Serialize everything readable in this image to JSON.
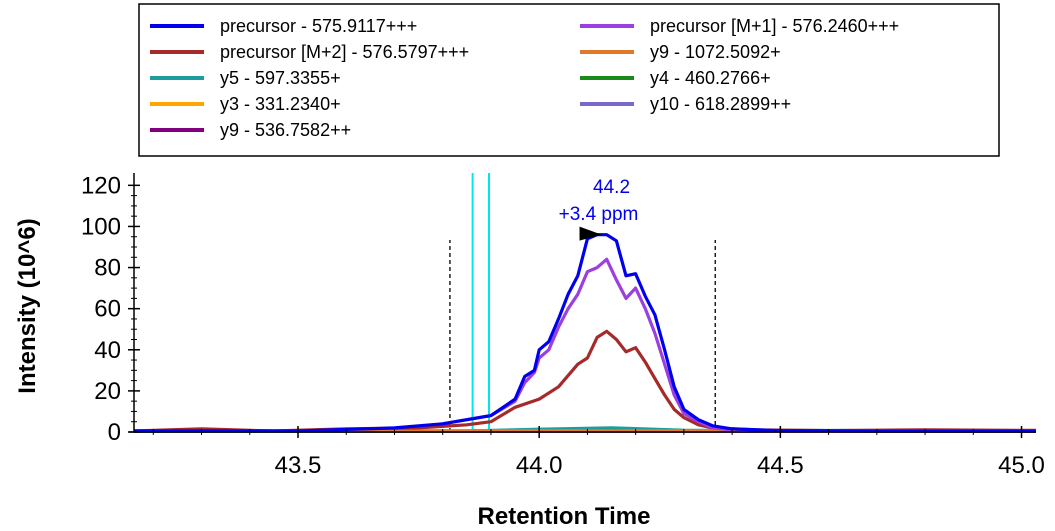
{
  "chart_data": {
    "type": "line",
    "xlabel": "Retention Time",
    "ylabel": "Intensity (10^6)",
    "xlim": [
      43.16,
      45.03
    ],
    "ylim": [
      0,
      126
    ],
    "xticks": [
      "43.5",
      "44.0",
      "44.5",
      "45.0"
    ],
    "xtick_values": [
      43.5,
      44.0,
      44.5,
      45.0
    ],
    "yticks": [
      "0",
      "20",
      "40",
      "60",
      "80",
      "100",
      "120"
    ],
    "ytick_values": [
      0,
      20,
      40,
      60,
      80,
      100,
      120
    ],
    "grid": false,
    "legend_placement": "top",
    "legend": [
      {
        "label": "precursor - 575.9117+++",
        "color": "#0000ee"
      },
      {
        "label": "precursor [M+1] - 576.2460+++",
        "color": "#9b3fe0"
      },
      {
        "label": "precursor [M+2] - 576.5797+++",
        "color": "#a52a2a"
      },
      {
        "label": "y9 - 1072.5092+",
        "color": "#e07a2a"
      },
      {
        "label": "y5 - 597.3355+",
        "color": "#1f9c9c"
      },
      {
        "label": "y4 - 460.2766+",
        "color": "#1a8a1a"
      },
      {
        "label": "y3 - 331.2340+",
        "color": "#ffa500"
      },
      {
        "label": "y10 - 618.2899++",
        "color": "#7b68c8"
      },
      {
        "label": "y9 - 536.7582++",
        "color": "#800080"
      }
    ],
    "series": [
      {
        "name": "precursor - 575.9117+++",
        "color": "#0000ee",
        "x": [
          43.16,
          43.5,
          43.7,
          43.8,
          43.85,
          43.9,
          43.95,
          43.97,
          43.99,
          44.0,
          44.02,
          44.04,
          44.06,
          44.08,
          44.1,
          44.12,
          44.14,
          44.16,
          44.18,
          44.2,
          44.22,
          44.24,
          44.26,
          44.28,
          44.3,
          44.33,
          44.36,
          44.4,
          44.5,
          44.7,
          45.03
        ],
        "y": [
          0.5,
          0.5,
          2,
          4,
          6,
          8,
          16,
          27,
          30,
          40,
          44,
          55,
          67,
          76,
          94,
          96,
          96,
          93,
          76,
          77,
          66,
          57,
          40,
          22,
          11,
          6,
          3,
          1.5,
          0.7,
          0.4,
          0.4
        ]
      },
      {
        "name": "precursor [M+1] - 576.2460+++",
        "color": "#9b3fe0",
        "x": [
          43.8,
          43.85,
          43.9,
          43.95,
          43.97,
          43.99,
          44.0,
          44.02,
          44.04,
          44.06,
          44.08,
          44.1,
          44.12,
          44.14,
          44.16,
          44.18,
          44.2,
          44.22,
          44.24,
          44.26,
          44.28,
          44.3,
          44.33,
          44.36,
          44.4
        ],
        "y": [
          4,
          6,
          8,
          15,
          24,
          29,
          36,
          40,
          51,
          60,
          67,
          78,
          80,
          84,
          74,
          65,
          70,
          60,
          48,
          33,
          18,
          9,
          5,
          2,
          1
        ]
      },
      {
        "name": "precursor [M+2] - 576.5797+++",
        "color": "#a52a2a",
        "x": [
          43.16,
          43.3,
          43.45,
          43.6,
          43.75,
          43.85,
          43.9,
          43.95,
          44.0,
          44.04,
          44.08,
          44.1,
          44.12,
          44.14,
          44.16,
          44.18,
          44.2,
          44.22,
          44.24,
          44.26,
          44.28,
          44.3,
          44.33,
          44.36,
          44.45,
          44.6,
          44.8,
          45.03
        ],
        "y": [
          0.5,
          1.5,
          0.5,
          1.5,
          2,
          3.5,
          5,
          12,
          16,
          22,
          33,
          36,
          46,
          49,
          45,
          39,
          41,
          34,
          26,
          18,
          11,
          7,
          3.5,
          2,
          1,
          0.7,
          1,
          0.8
        ]
      },
      {
        "name": "y9 - 1072.5092+",
        "color": "#e07a2a",
        "x": [
          43.16,
          45.03
        ],
        "y": [
          0.8,
          0.8
        ]
      },
      {
        "name": "y5 - 597.3355+",
        "color": "#1f9c9c",
        "x": [
          43.16,
          43.8,
          44.0,
          44.15,
          44.3,
          45.03
        ],
        "y": [
          0.3,
          0.4,
          1.5,
          2.2,
          1.0,
          0.8
        ]
      },
      {
        "name": "y4 - 460.2766+",
        "color": "#1a8a1a",
        "x": [
          43.16,
          43.8,
          44.0,
          44.15,
          44.3,
          45.03
        ],
        "y": [
          0.2,
          0.3,
          1.3,
          1.8,
          0.8,
          0.3
        ]
      },
      {
        "name": "y3 - 331.2340+",
        "color": "#ffa500",
        "x": [
          43.16,
          45.03
        ],
        "y": [
          0.4,
          0.4
        ]
      },
      {
        "name": "y10 - 618.2899++",
        "color": "#7b68c8",
        "x": [
          43.16,
          45.03
        ],
        "y": [
          0.3,
          0.3
        ]
      },
      {
        "name": "y9 - 536.7582++",
        "color": "#800080",
        "x": [
          43.16,
          45.03
        ],
        "y": [
          0.2,
          0.2
        ]
      }
    ],
    "boundary_lines": [
      43.815,
      44.365
    ],
    "id_lines": [
      43.862,
      43.896
    ],
    "id_line_color": "#00e5ee",
    "peak_annotation": {
      "x": 44.15,
      "y": 96,
      "rt_label": "44.2",
      "ppm_label": "+3.4 ppm",
      "color": "#0000ee"
    }
  }
}
